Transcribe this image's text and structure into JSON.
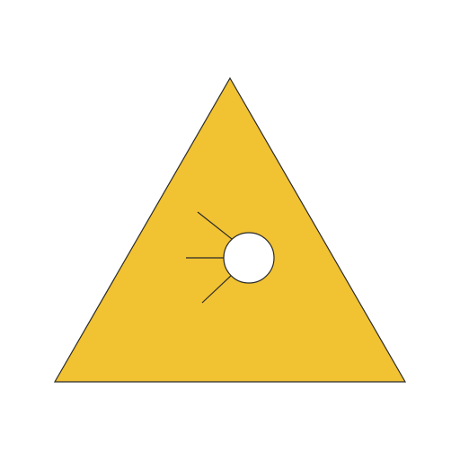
{
  "icon": {
    "name": "warning-triangle-icon",
    "colors": {
      "background": "#ffffff",
      "fill": "#f1c232",
      "stroke": "#2b2b2b",
      "circle_fill": "#ffffff"
    }
  }
}
